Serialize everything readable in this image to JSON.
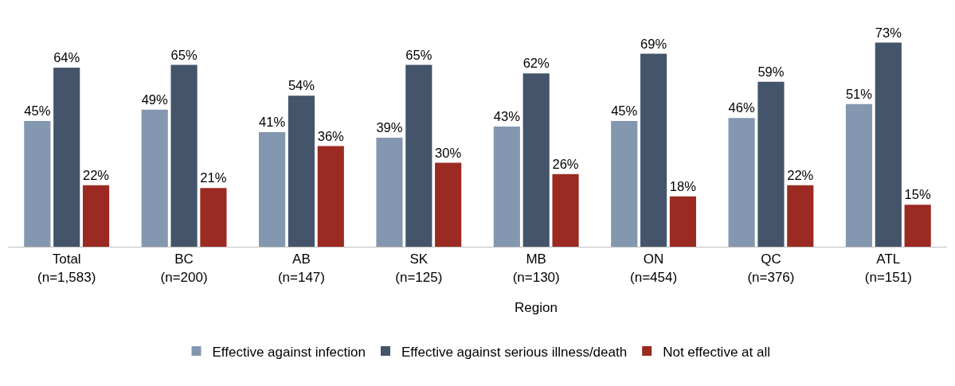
{
  "chart_data": {
    "type": "bar",
    "categories": [
      "Total\n(n=1,583)",
      "BC\n(n=200)",
      "AB\n(n=147)",
      "SK\n(n=125)",
      "MB\n(n=130)",
      "ON\n(n=454)",
      "QC\n(n=376)",
      "ATL\n(n=151)"
    ],
    "series": [
      {
        "name": "Effective against infection",
        "color": "#8497b0",
        "values": [
          45,
          49,
          41,
          39,
          43,
          45,
          46,
          51
        ],
        "value_labels": [
          "45%",
          "49%",
          "41%",
          "39%",
          "43%",
          "45%",
          "46%",
          "51%"
        ]
      },
      {
        "name": "Effective against serious illness/death",
        "color": "#44546a",
        "values": [
          64,
          65,
          54,
          65,
          62,
          69,
          59,
          73
        ],
        "value_labels": [
          "64%",
          "65%",
          "54%",
          "65%",
          "62%",
          "69%",
          "59%",
          "73%"
        ]
      },
      {
        "name": "Not effective at all",
        "color": "#9b2a22",
        "values": [
          22,
          21,
          36,
          30,
          26,
          18,
          22,
          15
        ],
        "value_labels": [
          "22%",
          "21%",
          "36%",
          "30%",
          "26%",
          "18%",
          "22%",
          "15%"
        ]
      }
    ],
    "annotations": [
      "Region"
    ],
    "legend": "bottom"
  }
}
